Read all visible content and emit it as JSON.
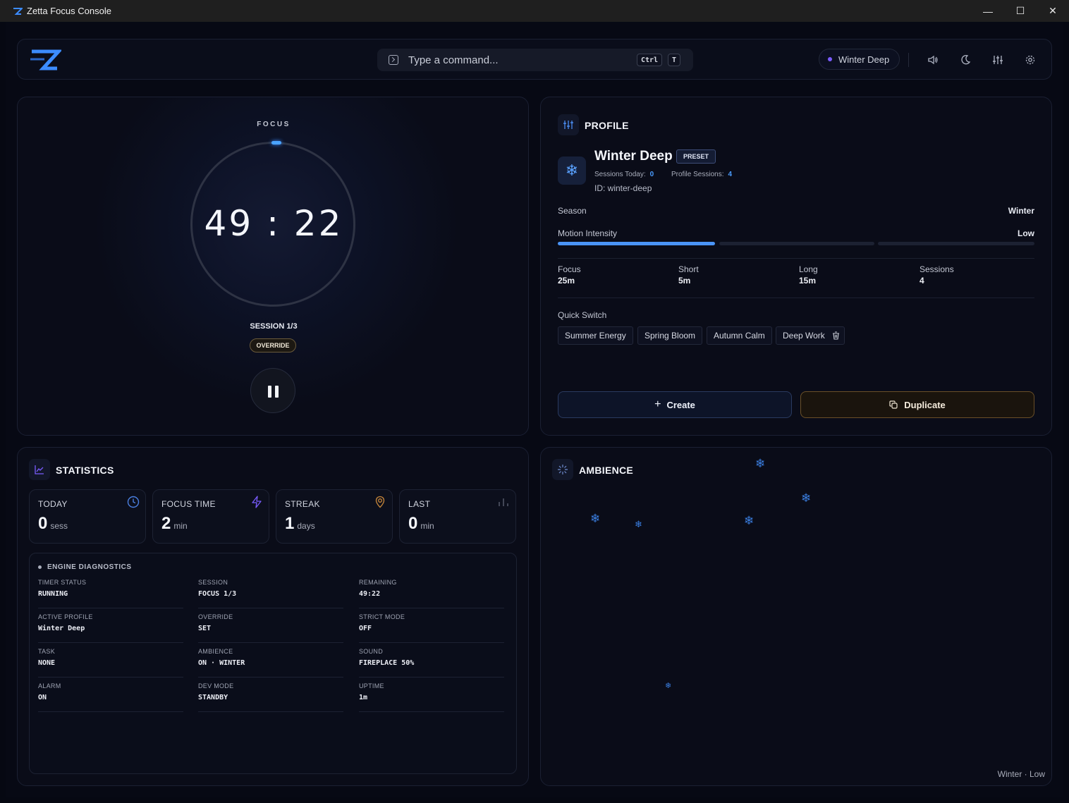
{
  "window": {
    "title": "Zetta Focus Console",
    "controls": [
      "—",
      "☐",
      "✕"
    ]
  },
  "header": {
    "command_placeholder": "Type a command...",
    "shortcut_keys": [
      "Ctrl",
      "T"
    ],
    "active_profile": "Winter Deep",
    "icons": [
      "volume-icon",
      "moon-icon",
      "sliders-icon",
      "gear-icon"
    ]
  },
  "timer": {
    "mode_label": "FOCUS",
    "time": "49 : 22",
    "session": "SESSION 1/3",
    "badge": "OVERRIDE",
    "progress_fraction": 0.99
  },
  "profile": {
    "heading": "PROFILE",
    "name": "Winter Deep",
    "badge": "PRESET",
    "sessions_today_label": "Sessions Today:",
    "sessions_today": "0",
    "profile_sessions_label": "Profile Sessions:",
    "profile_sessions": "4",
    "id_text": "ID: winter-deep",
    "season_label": "Season",
    "season": "Winter",
    "motion_label": "Motion Intensity",
    "motion": "Low",
    "motion_level": 1,
    "motion_levels": 3,
    "stats": [
      {
        "label": "Focus",
        "value": "25m"
      },
      {
        "label": "Short",
        "value": "5m"
      },
      {
        "label": "Long",
        "value": "15m"
      },
      {
        "label": "Sessions",
        "value": "4"
      }
    ],
    "quick_switch_label": "Quick Switch",
    "quick_switch": [
      "Summer Energy",
      "Spring Bloom",
      "Autumn Calm",
      "Deep Work"
    ],
    "create_label": "Create",
    "duplicate_label": "Duplicate"
  },
  "statistics": {
    "heading": "STATISTICS",
    "cards": [
      {
        "label": "TODAY",
        "value": "0",
        "unit": "sess",
        "icon": "clock-icon",
        "color": "#4a7fe0"
      },
      {
        "label": "FOCUS TIME",
        "value": "2",
        "unit": "min",
        "icon": "bolt-icon",
        "color": "#7a5cff"
      },
      {
        "label": "STREAK",
        "value": "1",
        "unit": "days",
        "icon": "target-icon",
        "color": "#c8873a"
      },
      {
        "label": "LAST",
        "value": "0",
        "unit": "min",
        "icon": "bars-icon",
        "color": "#5a5f70"
      }
    ],
    "diagnostics_title": "ENGINE DIAGNOSTICS",
    "diagnostics": [
      {
        "key": "TIMER STATUS",
        "value": "RUNNING"
      },
      {
        "key": "SESSION",
        "value": "FOCUS 1/3"
      },
      {
        "key": "REMAINING",
        "value": "49:22"
      },
      {
        "key": "ACTIVE PROFILE",
        "value": "Winter Deep"
      },
      {
        "key": "OVERRIDE",
        "value": "SET"
      },
      {
        "key": "STRICT MODE",
        "value": "OFF"
      },
      {
        "key": "TASK",
        "value": "NONE"
      },
      {
        "key": "AMBIENCE",
        "value": "ON · WINTER"
      },
      {
        "key": "SOUND",
        "value": "FIREPLACE 50%"
      },
      {
        "key": "ALARM",
        "value": "ON"
      },
      {
        "key": "DEV MODE",
        "value": "STANDBY"
      },
      {
        "key": "UPTIME",
        "value": "1m"
      }
    ]
  },
  "ambience": {
    "heading": "AMBIENCE",
    "footer": "Winter · Low",
    "particle_glyph": "❄"
  }
}
